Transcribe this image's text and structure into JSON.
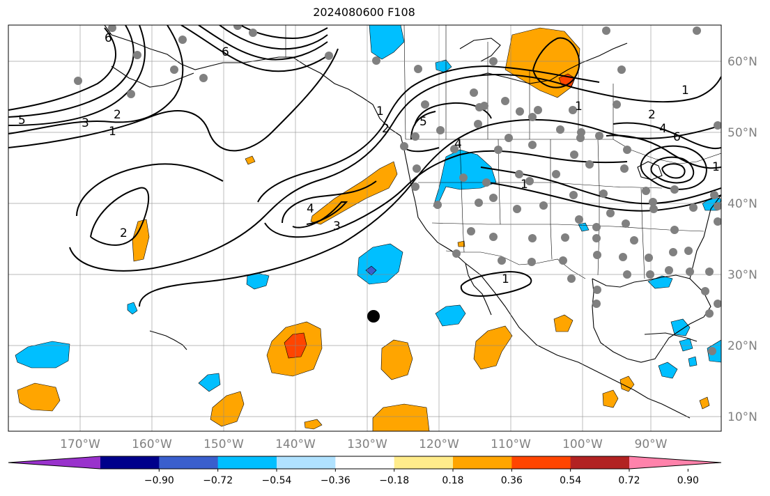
{
  "title": "2024080600 F108",
  "map": {
    "lon_ticks": [
      "170°W",
      "160°W",
      "150°W",
      "140°W",
      "130°W",
      "120°W",
      "110°W",
      "100°W",
      "90°W"
    ],
    "lat_ticks": [
      "10°N",
      "20°N",
      "30°N",
      "40°N",
      "50°N",
      "60°N"
    ],
    "contour_labels": [
      "5",
      "3",
      "2",
      "1",
      "6",
      "2",
      "4",
      "3",
      "1",
      "2",
      "6",
      "5",
      "4",
      "1",
      "1",
      "2",
      "4",
      "6",
      "1",
      "1",
      "1"
    ],
    "colors": {
      "positive_fill": "#ffa500",
      "strong_positive_fill": "#ff4500",
      "negative_fill": "#00bfff",
      "strong_negative_fill": "#3a5fcd",
      "station_dot": "#808080",
      "center_dot": "#000000"
    }
  },
  "colorbar": {
    "ticks": [
      "−0.90",
      "−0.72",
      "−0.54",
      "−0.36",
      "−0.18",
      "0.18",
      "0.36",
      "0.54",
      "0.72",
      "0.90"
    ],
    "colors": [
      "#9932cc",
      "#00008b",
      "#3a5fcd",
      "#00bfff",
      "#b0e2ff",
      "#ffffff",
      "#ffec8b",
      "#ffa500",
      "#ff4500",
      "#b22222",
      "#ff82ab"
    ]
  }
}
